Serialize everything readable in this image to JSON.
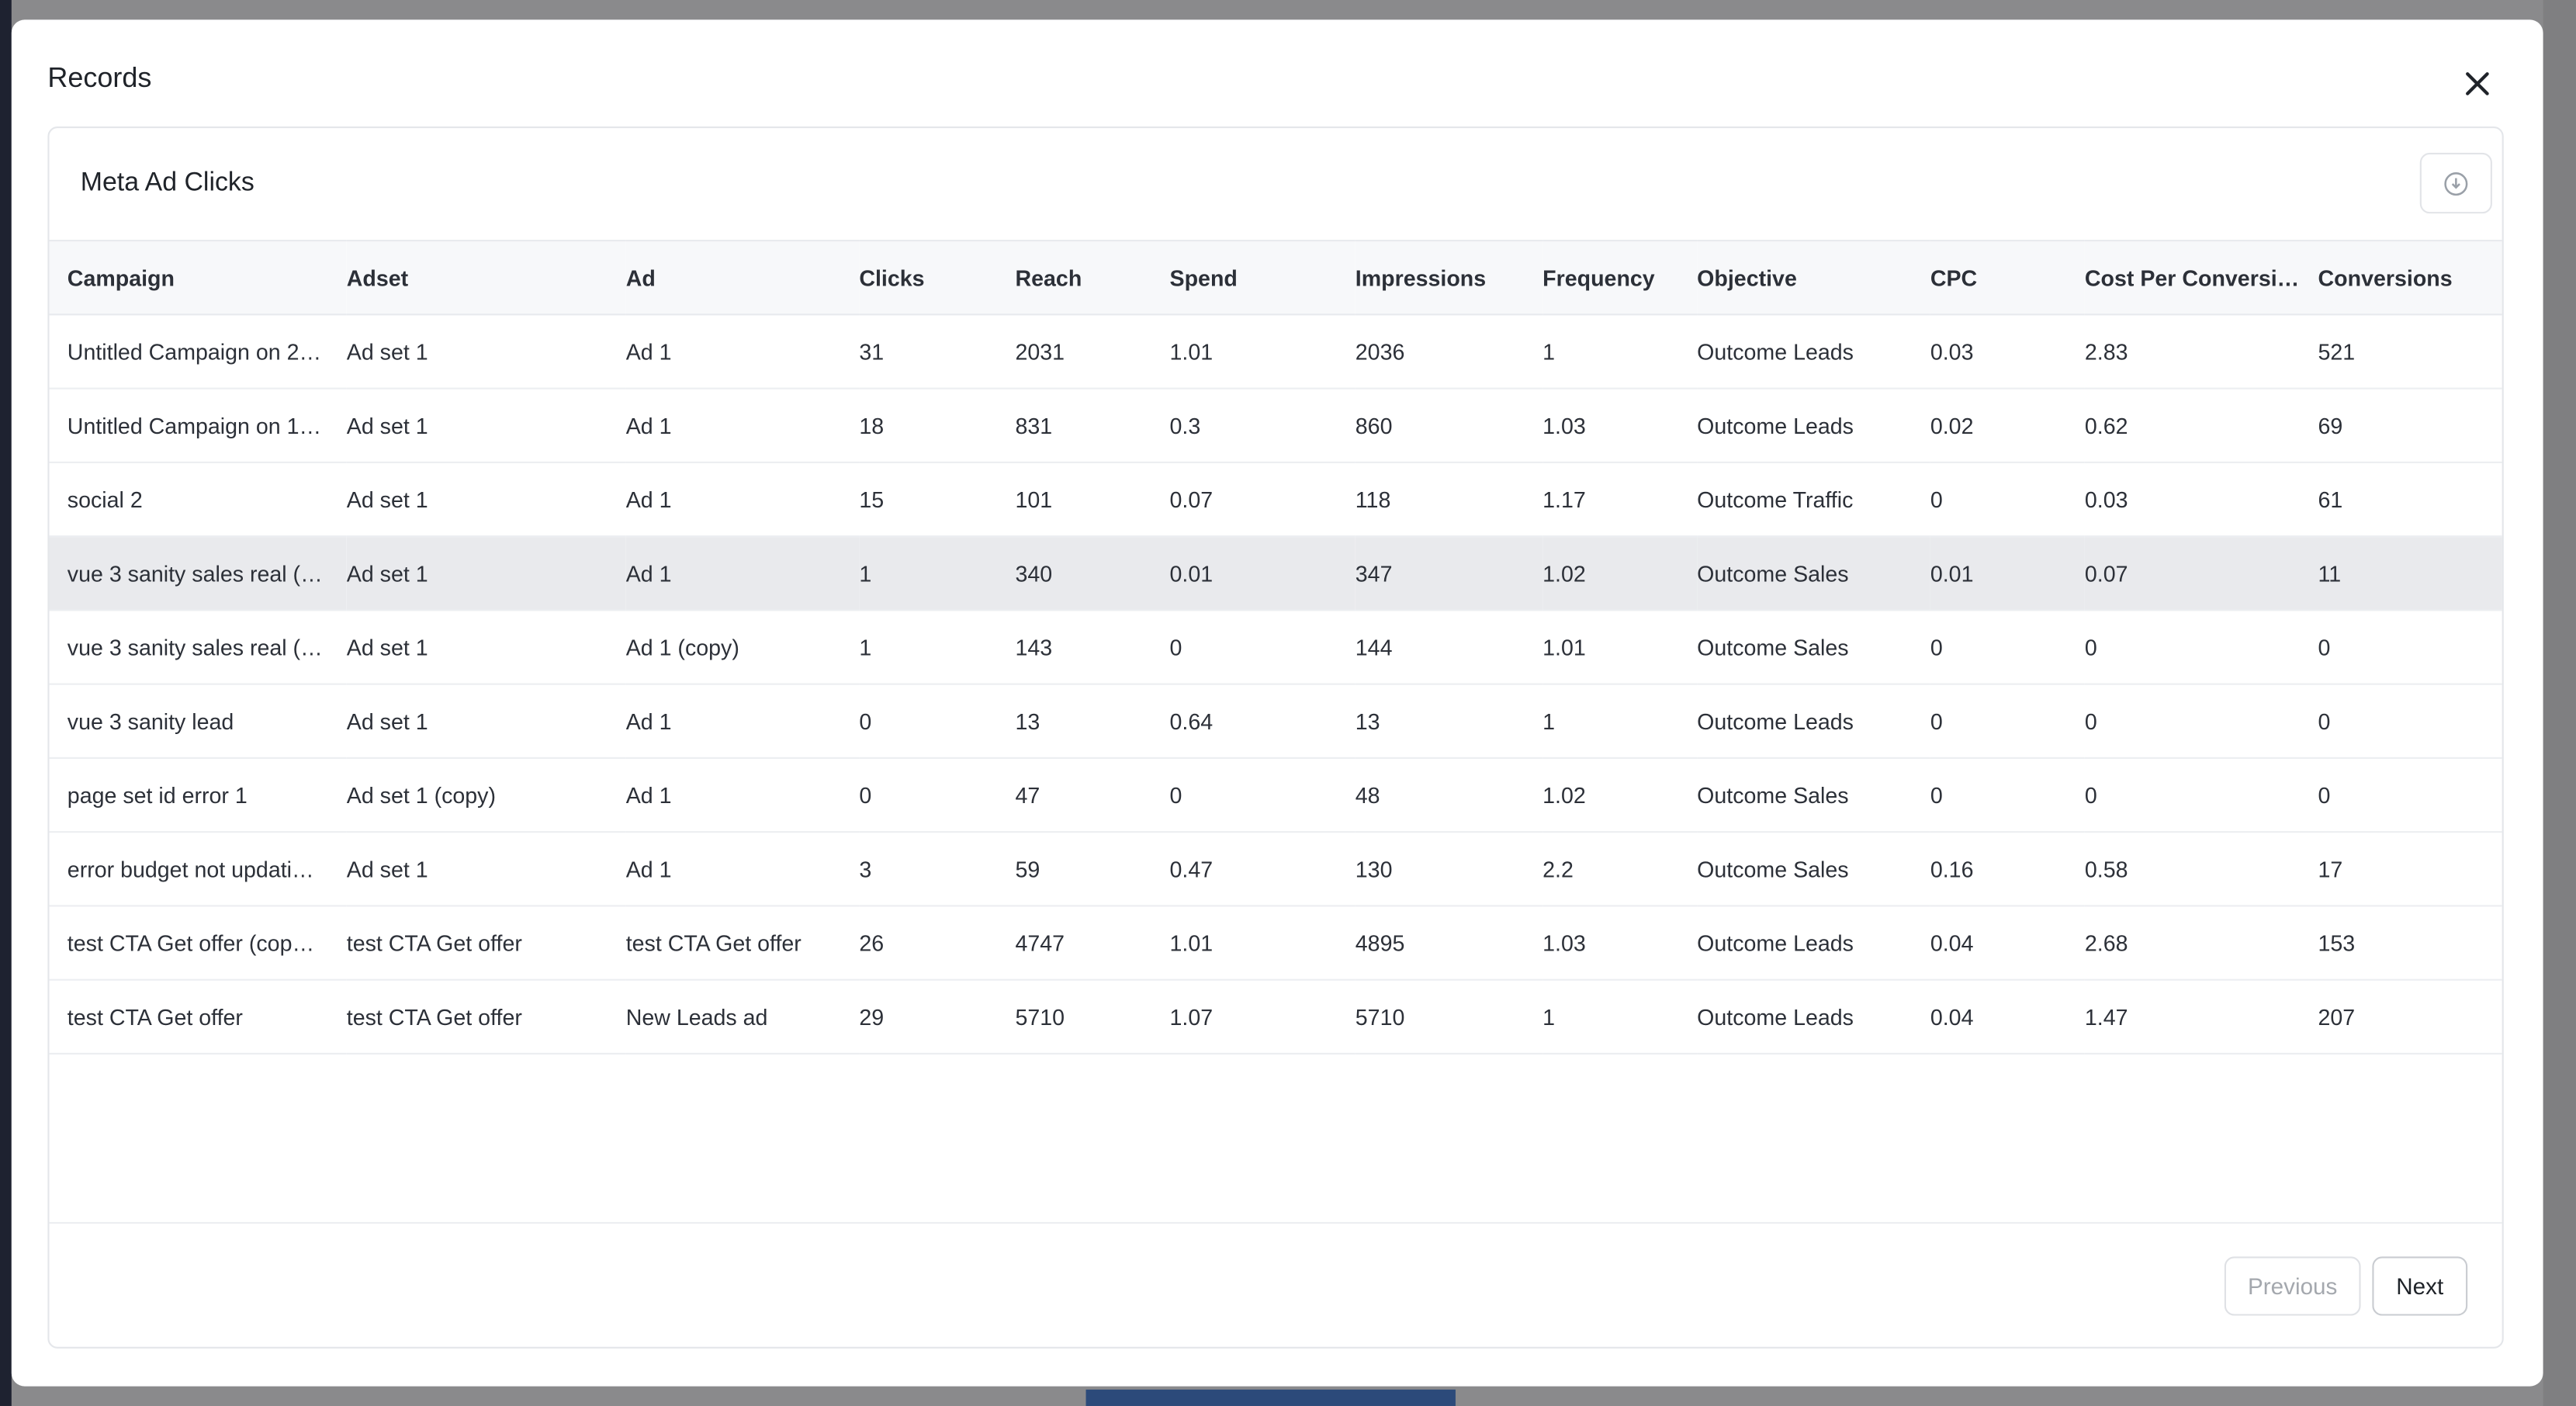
{
  "modal": {
    "title": "Records",
    "card_title": "Meta Ad Clicks",
    "table": {
      "columns": [
        "Campaign",
        "Adset",
        "Ad",
        "Clicks",
        "Reach",
        "Spend",
        "Impressions",
        "Frequency",
        "Objective",
        "CPC",
        "Cost Per Conversi…",
        "Conversions"
      ],
      "rows": [
        [
          "Untitled Campaign on 2…",
          "Ad set 1",
          "Ad 1",
          "31",
          "2031",
          "1.01",
          "2036",
          "1",
          "Outcome Leads",
          "0.03",
          "2.83",
          "521"
        ],
        [
          "Untitled Campaign on 1…",
          "Ad set 1",
          "Ad 1",
          "18",
          "831",
          "0.3",
          "860",
          "1.03",
          "Outcome Leads",
          "0.02",
          "0.62",
          "69"
        ],
        [
          "social 2",
          "Ad set 1",
          "Ad 1",
          "15",
          "101",
          "0.07",
          "118",
          "1.17",
          "Outcome Traffic",
          "0",
          "0.03",
          "61"
        ],
        [
          "vue 3 sanity sales real (…",
          "Ad set 1",
          "Ad 1",
          "1",
          "340",
          "0.01",
          "347",
          "1.02",
          "Outcome Sales",
          "0.01",
          "0.07",
          "11"
        ],
        [
          "vue 3 sanity sales real (…",
          "Ad set 1",
          "Ad 1 (copy)",
          "1",
          "143",
          "0",
          "144",
          "1.01",
          "Outcome Sales",
          "0",
          "0",
          "0"
        ],
        [
          "vue 3 sanity lead",
          "Ad set 1",
          "Ad 1",
          "0",
          "13",
          "0.64",
          "13",
          "1",
          "Outcome Leads",
          "0",
          "0",
          "0"
        ],
        [
          "page set id error 1",
          "Ad set 1 (copy)",
          "Ad 1",
          "0",
          "47",
          "0",
          "48",
          "1.02",
          "Outcome Sales",
          "0",
          "0",
          "0"
        ],
        [
          "error budget not updati…",
          "Ad set 1",
          "Ad 1",
          "3",
          "59",
          "0.47",
          "130",
          "2.2",
          "Outcome Sales",
          "0.16",
          "0.58",
          "17"
        ],
        [
          "test CTA Get offer (cop…",
          "test CTA Get offer",
          "test CTA Get offer",
          "26",
          "4747",
          "1.01",
          "4895",
          "1.03",
          "Outcome Leads",
          "0.04",
          "2.68",
          "153"
        ],
        [
          "test CTA Get offer",
          "test CTA Get offer",
          "New Leads ad",
          "29",
          "5710",
          "1.07",
          "5710",
          "1",
          "Outcome Leads",
          "0.04",
          "1.47",
          "207"
        ]
      ]
    },
    "previous": "Previous",
    "next": "Next"
  }
}
